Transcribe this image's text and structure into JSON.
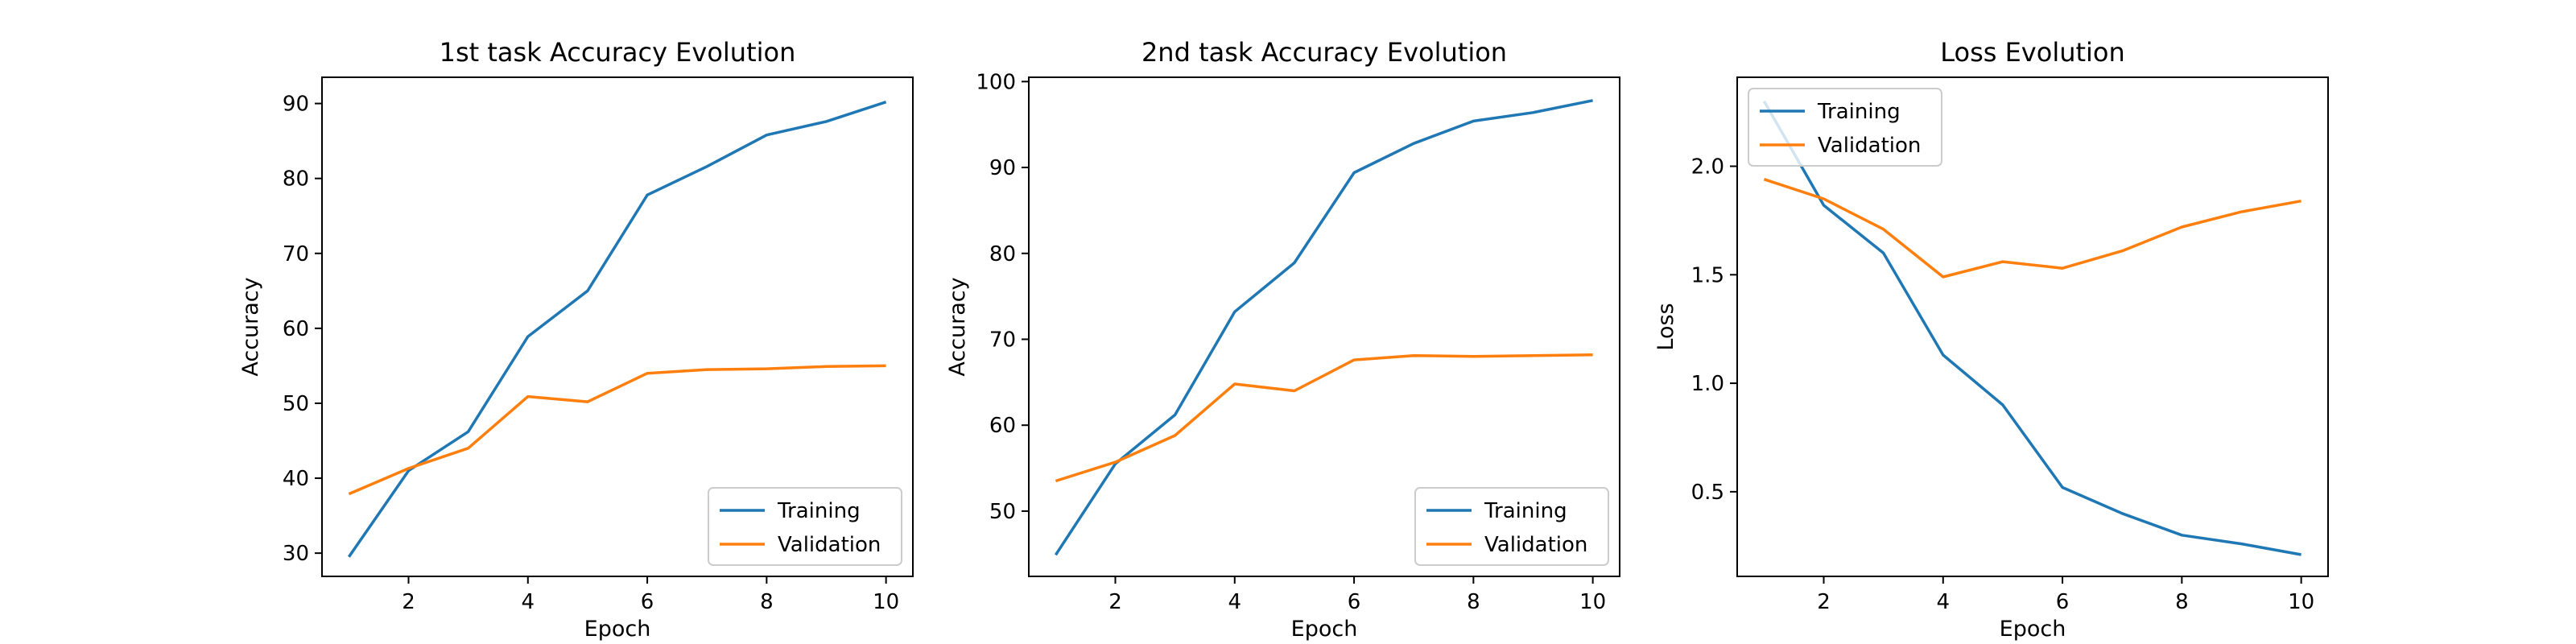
{
  "chart_data": [
    {
      "type": "line",
      "title": "1st task Accuracy Evolution",
      "xlabel": "Epoch",
      "ylabel": "Accuracy",
      "x": [
        1,
        2,
        3,
        4,
        5,
        6,
        7,
        8,
        9,
        10
      ],
      "xticks": [
        2,
        4,
        6,
        8,
        10
      ],
      "yticks": [
        30,
        40,
        50,
        60,
        70,
        80,
        90
      ],
      "xlim": [
        0.55,
        10.45
      ],
      "ylim": [
        26.9,
        93.5
      ],
      "legend_position": "lower right",
      "series": [
        {
          "name": "Training",
          "color": "#1f77b4",
          "values": [
            29.5,
            41.0,
            46.2,
            58.9,
            65.0,
            77.8,
            81.6,
            85.8,
            87.6,
            90.2
          ]
        },
        {
          "name": "Validation",
          "color": "#ff7f0e",
          "values": [
            37.9,
            41.3,
            44.0,
            50.9,
            50.2,
            54.0,
            54.5,
            54.6,
            54.9,
            55.0
          ]
        }
      ]
    },
    {
      "type": "line",
      "title": "2nd task Accuracy Evolution",
      "xlabel": "Epoch",
      "ylabel": "Accuracy",
      "x": [
        1,
        2,
        3,
        4,
        5,
        6,
        7,
        8,
        9,
        10
      ],
      "xticks": [
        2,
        4,
        6,
        8,
        10
      ],
      "yticks": [
        50,
        60,
        70,
        80,
        90,
        100
      ],
      "xlim": [
        0.55,
        10.45
      ],
      "ylim": [
        42.4,
        100.5
      ],
      "legend_position": "lower right",
      "series": [
        {
          "name": "Training",
          "color": "#1f77b4",
          "values": [
            44.9,
            55.5,
            61.2,
            73.2,
            78.9,
            89.4,
            92.8,
            95.4,
            96.4,
            97.8
          ]
        },
        {
          "name": "Validation",
          "color": "#ff7f0e",
          "values": [
            53.5,
            55.7,
            58.8,
            64.8,
            64.0,
            67.6,
            68.1,
            68.0,
            68.1,
            68.2
          ]
        }
      ]
    },
    {
      "type": "line",
      "title": "Loss Evolution",
      "xlabel": "Epoch",
      "ylabel": "Loss",
      "x": [
        1,
        2,
        3,
        4,
        5,
        6,
        7,
        8,
        9,
        10
      ],
      "xticks": [
        2,
        4,
        6,
        8,
        10
      ],
      "yticks": [
        0.5,
        1.0,
        1.5,
        2.0
      ],
      "yticklabels": [
        "0.5",
        "1.0",
        "1.5",
        "2.0"
      ],
      "xlim": [
        0.55,
        10.45
      ],
      "ylim": [
        0.11,
        2.41
      ],
      "legend_position": "upper left",
      "series": [
        {
          "name": "Training",
          "color": "#1f77b4",
          "values": [
            2.3,
            1.82,
            1.6,
            1.13,
            0.9,
            0.52,
            0.4,
            0.3,
            0.26,
            0.21
          ]
        },
        {
          "name": "Validation",
          "color": "#ff7f0e",
          "values": [
            1.94,
            1.85,
            1.71,
            1.49,
            1.56,
            1.53,
            1.61,
            1.72,
            1.79,
            1.84
          ]
        }
      ]
    }
  ]
}
